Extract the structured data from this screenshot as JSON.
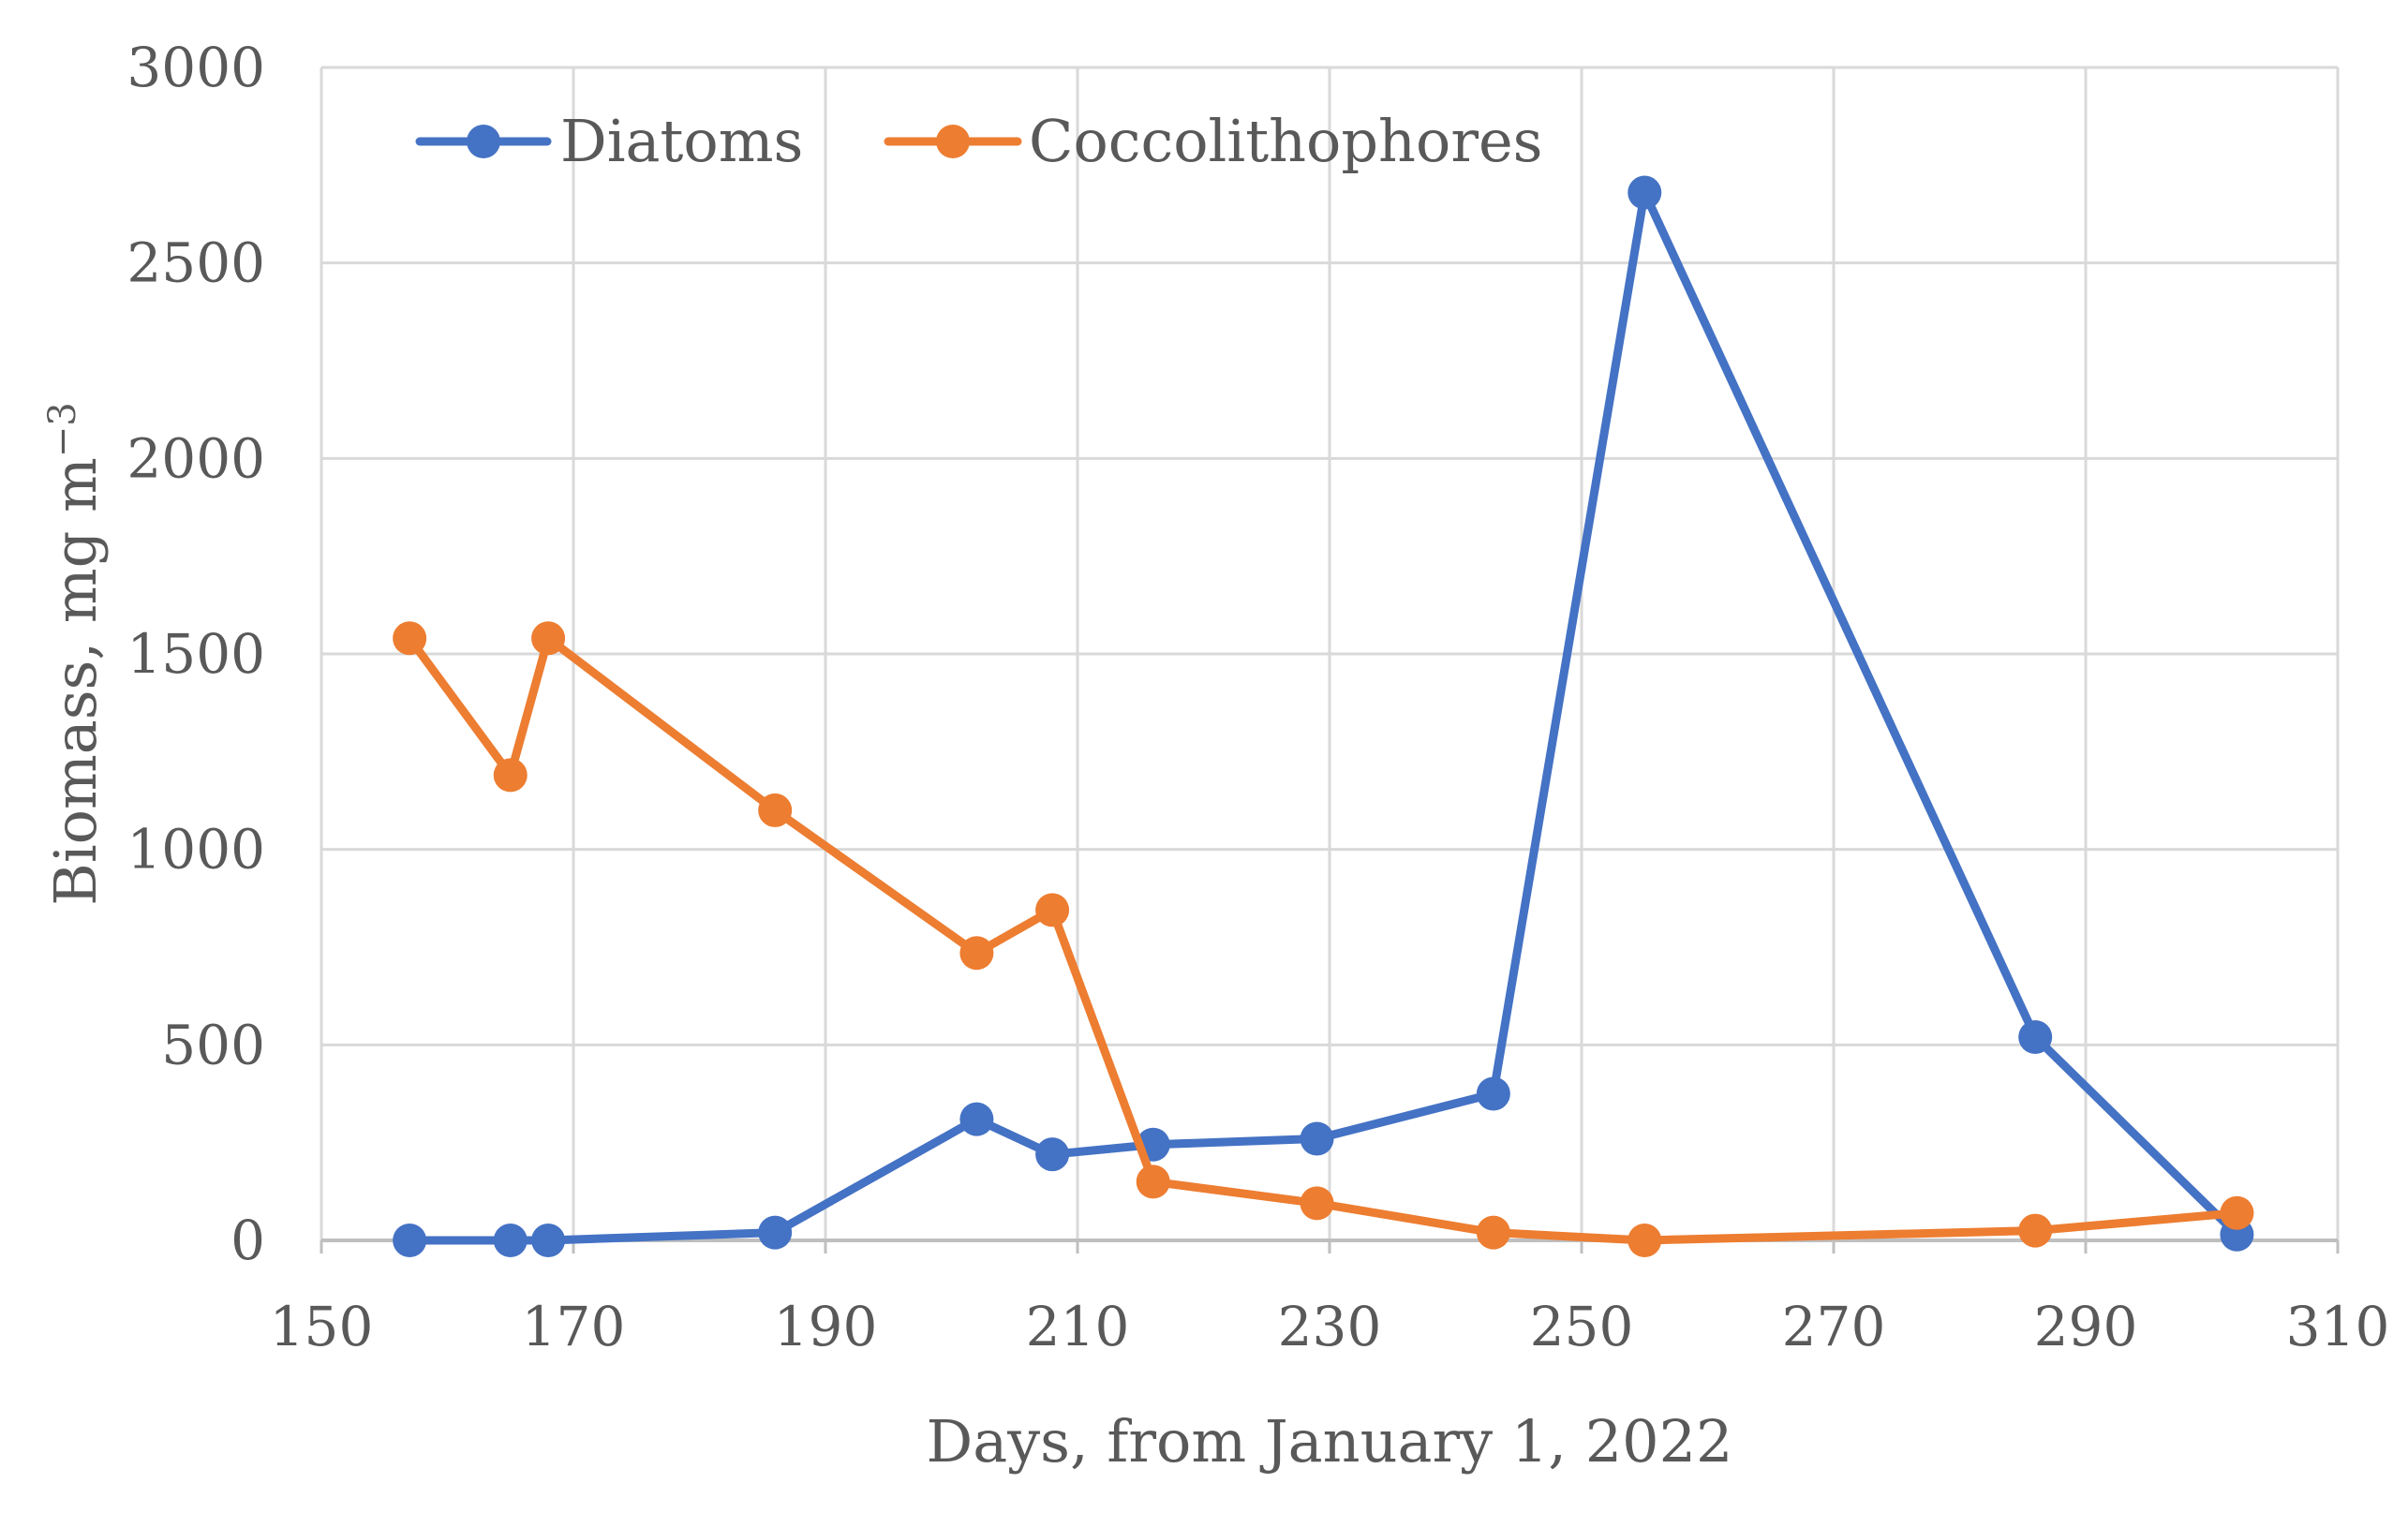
{
  "chart_data": {
    "type": "line",
    "xlabel": "Days, from January 1, 2022",
    "ylabel_main": "Biomass, mg m",
    "ylabel_sup": "−3",
    "xlim": [
      150,
      310
    ],
    "ylim": [
      0,
      3000
    ],
    "xticks": [
      150,
      170,
      190,
      210,
      230,
      250,
      270,
      290,
      310
    ],
    "yticks": [
      0,
      500,
      1000,
      1500,
      2000,
      2500,
      3000
    ],
    "grid": true,
    "legend_position": "top-left",
    "series": [
      {
        "name": "Diatoms",
        "color": "#4472C4",
        "marker": "circle",
        "x": [
          157,
          165,
          168,
          186,
          202,
          208,
          216,
          229,
          243,
          255,
          286,
          302
        ],
        "y": [
          0,
          0,
          0,
          20,
          310,
          220,
          245,
          260,
          375,
          2680,
          520,
          15
        ]
      },
      {
        "name": "Coccolithophores",
        "color": "#ED7D31",
        "marker": "circle",
        "x": [
          157,
          165,
          168,
          186,
          202,
          208,
          216,
          229,
          243,
          255,
          286,
          302
        ],
        "y": [
          1540,
          1190,
          1540,
          1100,
          735,
          845,
          150,
          95,
          20,
          0,
          25,
          70
        ]
      }
    ]
  }
}
